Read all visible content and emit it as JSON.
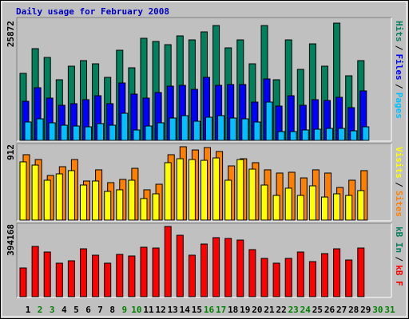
{
  "chart_data": [
    {
      "type": "bar",
      "title": "Daily usage for February 2008",
      "ylim": [
        0,
        25872
      ],
      "yticks": [
        25872
      ],
      "separator": "/",
      "series": [
        {
          "name": "Hits",
          "color": "#00805c",
          "values": [
            14784,
            20240,
            18304,
            13376,
            16368,
            17600,
            16896,
            13904,
            19888,
            16016,
            22528,
            21824,
            21120,
            23056,
            22176,
            23936,
            25344,
            20416,
            22176,
            16896,
            25344,
            13376,
            22176,
            15664,
            21296,
            16368,
            25872,
            14256,
            17600,
            null,
            null
          ]
        },
        {
          "name": "Files",
          "color": "#0000ff",
          "values": [
            8624,
            11616,
            9328,
            7744,
            8096,
            8976,
            9856,
            8096,
            12672,
            10208,
            9328,
            10560,
            11968,
            12144,
            11264,
            13904,
            12144,
            12320,
            12320,
            8448,
            13552,
            7568,
            9856,
            7744,
            8976,
            8800,
            9504,
            7216,
            10912,
            null,
            null
          ]
        },
        {
          "name": "Pages",
          "color": "#00c0ff",
          "values": [
            4048,
            4752,
            3872,
            3344,
            3168,
            2992,
            3696,
            3344,
            5984,
            2288,
            3168,
            3872,
            4928,
            5456,
            4224,
            5104,
            5456,
            4928,
            4752,
            4048,
            8448,
            1936,
            1936,
            2288,
            2464,
            2640,
            2640,
            2112,
            2992,
            null,
            null
          ]
        }
      ]
    },
    {
      "type": "bar",
      "ylim": [
        0,
        912
      ],
      "yticks": [
        912
      ],
      "separator": "/",
      "series": [
        {
          "name": "Visits",
          "color": "#ffff00",
          "values": [
            724,
            684,
            496,
            575,
            615,
            436,
            486,
            357,
            377,
            496,
            268,
            327,
            714,
            763,
            753,
            743,
            773,
            496,
            753,
            634,
            436,
            307,
            397,
            307,
            426,
            287,
            327,
            307,
            367,
            null,
            null
          ]
        },
        {
          "name": "Sites",
          "color": "#ff8000",
          "values": [
            813,
            753,
            555,
            664,
            753,
            486,
            625,
            466,
            506,
            644,
            377,
            446,
            813,
            912,
            872,
            902,
            853,
            674,
            763,
            714,
            625,
            585,
            595,
            525,
            625,
            585,
            406,
            496,
            615,
            null,
            null
          ]
        }
      ]
    },
    {
      "type": "bar",
      "ylim": [
        0,
        394168
      ],
      "yticks": [
        394168
      ],
      "separator": "/",
      "categories": [
        "1",
        "2",
        "3",
        "4",
        "5",
        "6",
        "7",
        "8",
        "9",
        "10",
        "11",
        "12",
        "13",
        "14",
        "15",
        "16",
        "17",
        "18",
        "19",
        "20",
        "21",
        "22",
        "23",
        "24",
        "25",
        "26",
        "27",
        "28",
        "29",
        "30",
        "31"
      ],
      "category_colors": [
        "#000000",
        "#008000",
        "#008000",
        "#000000",
        "#000000",
        "#000000",
        "#000000",
        "#000000",
        "#008000",
        "#008000",
        "#000000",
        "#000000",
        "#000000",
        "#000000",
        "#000000",
        "#008000",
        "#008000",
        "#000000",
        "#000000",
        "#000000",
        "#000000",
        "#000000",
        "#008000",
        "#008000",
        "#000000",
        "#000000",
        "#000000",
        "#000000",
        "#000000",
        "#008000",
        "#008000"
      ],
      "series": [
        {
          "name": "kB In",
          "color": "#00805c",
          "values": [
            null,
            null,
            null,
            null,
            null,
            null,
            null,
            null,
            null,
            null,
            null,
            null,
            null,
            null,
            null,
            null,
            null,
            null,
            null,
            null,
            null,
            null,
            null,
            null,
            null,
            null,
            null,
            null,
            null,
            null,
            null
          ]
        },
        {
          "name": "kB F",
          "color": "#ff0000",
          "values": [
            161244,
            282177,
            250824,
            188118,
            201555,
            268740,
            232908,
            188118,
            237387,
            228429,
            277698,
            273219,
            394168,
            344883,
            232908,
            295614,
            331446,
            326967,
            318009,
            264261,
            214992,
            188118,
            214992,
            250824,
            197076,
            241866,
            268740,
            206034,
            273219,
            null,
            null
          ]
        }
      ]
    }
  ]
}
